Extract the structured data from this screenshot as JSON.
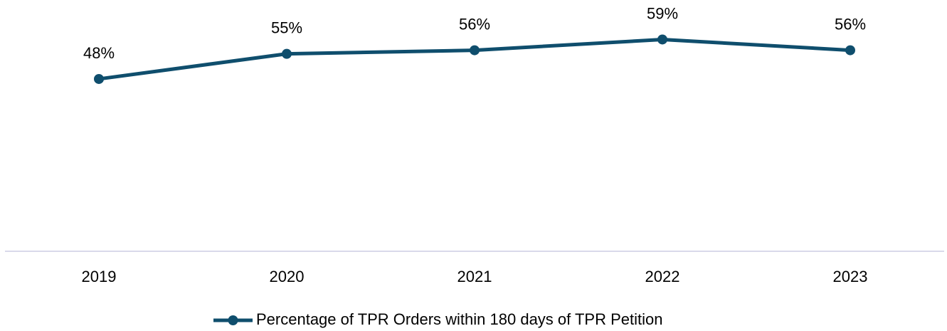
{
  "chart_data": {
    "type": "line",
    "categories": [
      "2019",
      "2020",
      "2021",
      "2022",
      "2023"
    ],
    "series": [
      {
        "name": "Percentage of TPR Orders within 180 days of TPR Petition",
        "color": "#0f4e6d",
        "values": [
          48,
          55,
          56,
          59,
          56
        ],
        "value_labels": [
          "48%",
          "55%",
          "56%",
          "59%",
          "56%"
        ]
      }
    ],
    "ylim": [
      0,
      70
    ],
    "legend": "bottom"
  }
}
